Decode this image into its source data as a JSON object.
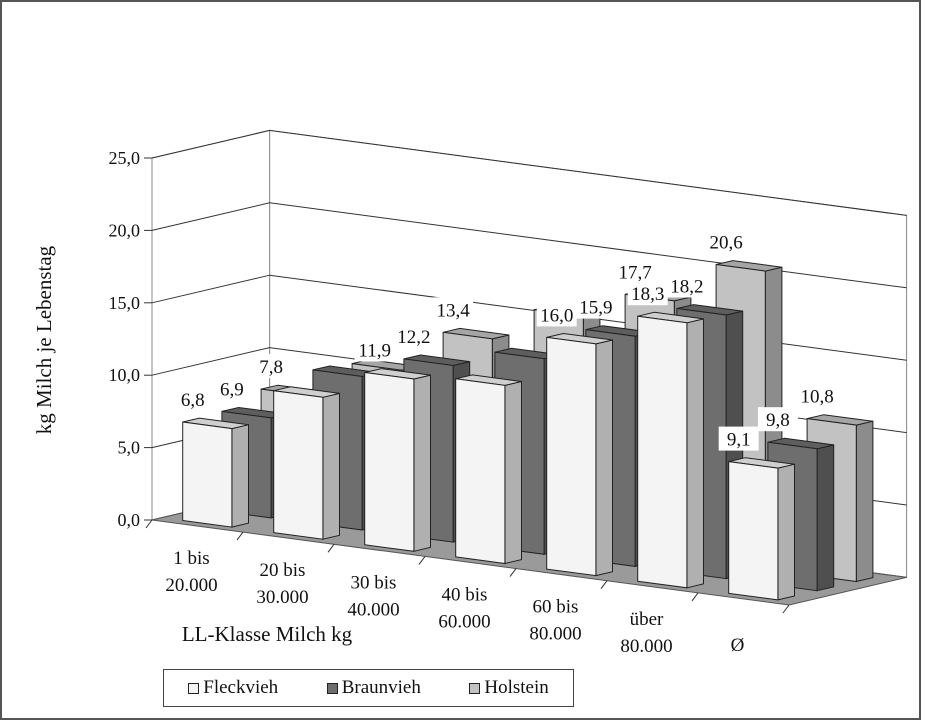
{
  "chart_data": {
    "type": "bar",
    "ylabel": "kg Milch je Lebenstag",
    "xlabel": "LL-Klasse Milch kg",
    "ylim": [
      0,
      25
    ],
    "yticks": [
      "0,0",
      "5,0",
      "10,0",
      "15,0",
      "20,0",
      "25,0"
    ],
    "categories": [
      [
        "1 bis",
        "20.000"
      ],
      [
        "20 bis",
        "30.000"
      ],
      [
        "30 bis",
        "40.000"
      ],
      [
        "40 bis",
        "60.000"
      ],
      [
        "60 bis",
        "80.000"
      ],
      [
        "über",
        "80.000"
      ],
      [
        "Ø"
      ]
    ],
    "series": [
      {
        "name": "Fleckvieh",
        "values": [
          6.8,
          9.8,
          11.9,
          12.3,
          16.0,
          18.3,
          9.1
        ],
        "labels": [
          "6,8",
          "",
          "11,9",
          "",
          "16,0",
          "18,3",
          "9,1"
        ],
        "color": "#f4f4f4"
      },
      {
        "name": "Braunvieh",
        "values": [
          6.9,
          10.6,
          12.2,
          13.5,
          15.9,
          18.2,
          9.8
        ],
        "labels": [
          "6,9",
          "",
          "12,2",
          "",
          "15,9",
          "18,2",
          "9,8"
        ],
        "color": "#6e6e6e"
      },
      {
        "name": "Holstein",
        "values": [
          7.8,
          10.4,
          13.4,
          15.8,
          17.7,
          20.6,
          10.8
        ],
        "labels": [
          "7,8",
          "",
          "13,4",
          "",
          "17,7",
          "20,6",
          "10,8"
        ],
        "color": "#c2c2c2"
      }
    ],
    "grid": true,
    "legend": "bottom"
  }
}
